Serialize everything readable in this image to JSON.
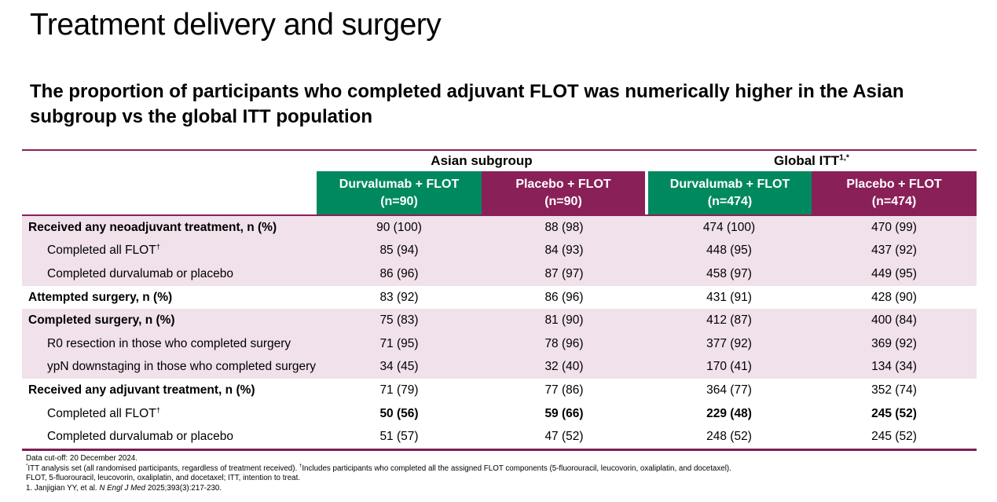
{
  "slide": {
    "title": "Treatment delivery and surgery",
    "subtitle": "The proportion of participants who completed adjuvant FLOT was numerically higher in the Asian subgroup vs the global ITT population"
  },
  "colors": {
    "header_green": "#00895F",
    "header_maroon": "#8A2058",
    "row_pink": "#F0E1EB",
    "rule_mulberry": "#8A2058"
  },
  "table": {
    "groups": [
      {
        "label": "Asian subgroup",
        "sup": ""
      },
      {
        "label": "Global ITT",
        "sup": "1,*"
      }
    ],
    "columns": [
      {
        "line1": "Durvalumab + FLOT",
        "line2": "(n=90)"
      },
      {
        "line1": "Placebo + FLOT",
        "line2": "(n=90)"
      },
      {
        "line1": "Durvalumab + FLOT",
        "line2": "(n=474)"
      },
      {
        "line1": "Placebo + FLOT",
        "line2": "(n=474)"
      }
    ],
    "rows": [
      {
        "label": "Received any neoadjuvant treatment, n (%)",
        "values": [
          "90 (100)",
          "88 (98)",
          "474 (100)",
          "470 (99)"
        ]
      },
      {
        "label": "Completed all FLOT",
        "label_sup": "†",
        "values": [
          "85 (94)",
          "84 (93)",
          "448 (95)",
          "437 (92)"
        ]
      },
      {
        "label": "Completed durvalumab or placebo",
        "values": [
          "86 (96)",
          "87 (97)",
          "458 (97)",
          "449 (95)"
        ]
      },
      {
        "label": "Attempted surgery, n (%)",
        "values": [
          "83 (92)",
          "86 (96)",
          "431 (91)",
          "428 (90)"
        ]
      },
      {
        "label": "Completed surgery, n (%)",
        "values": [
          "75 (83)",
          "81 (90)",
          "412 (87)",
          "400 (84)"
        ]
      },
      {
        "label": "R0 resection in those who completed surgery",
        "values": [
          "71 (95)",
          "78 (96)",
          "377 (92)",
          "369 (92)"
        ]
      },
      {
        "label": "ypN downstaging in those who completed surgery",
        "values": [
          "34 (45)",
          "32 (40)",
          "170 (41)",
          "134 (34)"
        ]
      },
      {
        "label": "Received any adjuvant treatment, n (%)",
        "values": [
          "71 (79)",
          "77 (86)",
          "364 (77)",
          "352 (74)"
        ]
      },
      {
        "label": "Completed all FLOT",
        "label_sup": "†",
        "values": [
          "50 (56)",
          "59 (66)",
          "229 (48)",
          "245 (52)"
        ]
      },
      {
        "label": "Completed durvalumab or placebo",
        "values": [
          "51 (57)",
          "47 (52)",
          "248 (52)",
          "245 (52)"
        ]
      }
    ]
  },
  "footnotes": {
    "line1": "Data cut-off: 20 December 2024.",
    "line2_sup1": "*",
    "line2_text1": "ITT analysis set (all randomised participants, regardless of treatment received). ",
    "line2_sup2": "†",
    "line2_text2": "Includes participants who completed all the assigned FLOT components (5-fluorouracil, leucovorin, oxaliplatin, and docetaxel).",
    "line3": "FLOT, 5-fluorouracil, leucovorin, oxaliplatin, and docetaxel; ITT, intention to treat.",
    "line4_text1": "1. Janjigian YY, et al. ",
    "line4_italic": "N Engl J Med",
    "line4_text2": " 2025;393(3):217-230."
  }
}
